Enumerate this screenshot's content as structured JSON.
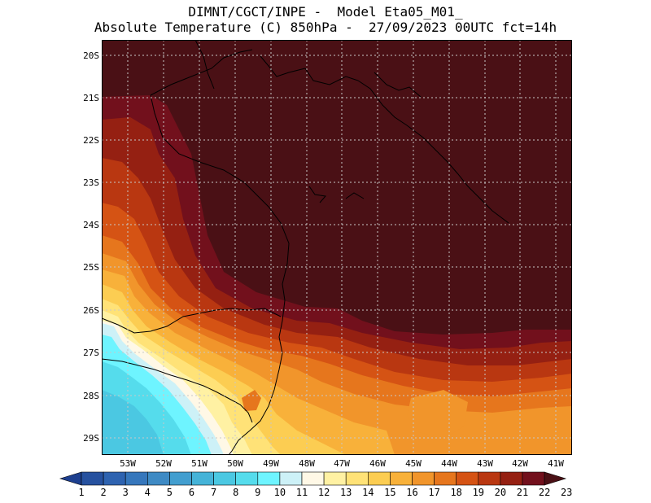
{
  "header": {
    "line1": "DIMNT/CGCT/INPE -  Model Eta05_M01_",
    "line2": "Absolute Temperature (C) 850hPa -  27/09/2023 00UTC fct=14h"
  },
  "map": {
    "lat_labels": [
      "20S",
      "21S",
      "22S",
      "23S",
      "24S",
      "25S",
      "26S",
      "27S",
      "28S",
      "29S"
    ],
    "lon_labels": [
      "53W",
      "52W",
      "51W",
      "50W",
      "49W",
      "48W",
      "47W",
      "46W",
      "45W",
      "44W",
      "43W",
      "42W",
      "41W"
    ],
    "grid": true,
    "region": "Southern Brazil / South Atlantic",
    "field": "temperature at 850hPa"
  },
  "colorbar": {
    "labels": [
      "1",
      "2",
      "3",
      "4",
      "5",
      "6",
      "7",
      "8",
      "9",
      "10",
      "11",
      "12",
      "13",
      "14",
      "15",
      "16",
      "17",
      "18",
      "19",
      "20",
      "21",
      "22",
      "23"
    ],
    "colors": [
      "#1d3f8f",
      "#26519f",
      "#2e63b0",
      "#3677bc",
      "#3e8ac4",
      "#429ecf",
      "#45b3d8",
      "#4bc8e2",
      "#55dcec",
      "#6ef4ff",
      "#cdf1f7",
      "#fff8e6",
      "#fff1a3",
      "#ffe277",
      "#fccd52",
      "#f8b13a",
      "#f1952b",
      "#e6761d",
      "#d55314",
      "#b93711",
      "#952012",
      "#72101c",
      "#4a1015"
    ]
  }
}
